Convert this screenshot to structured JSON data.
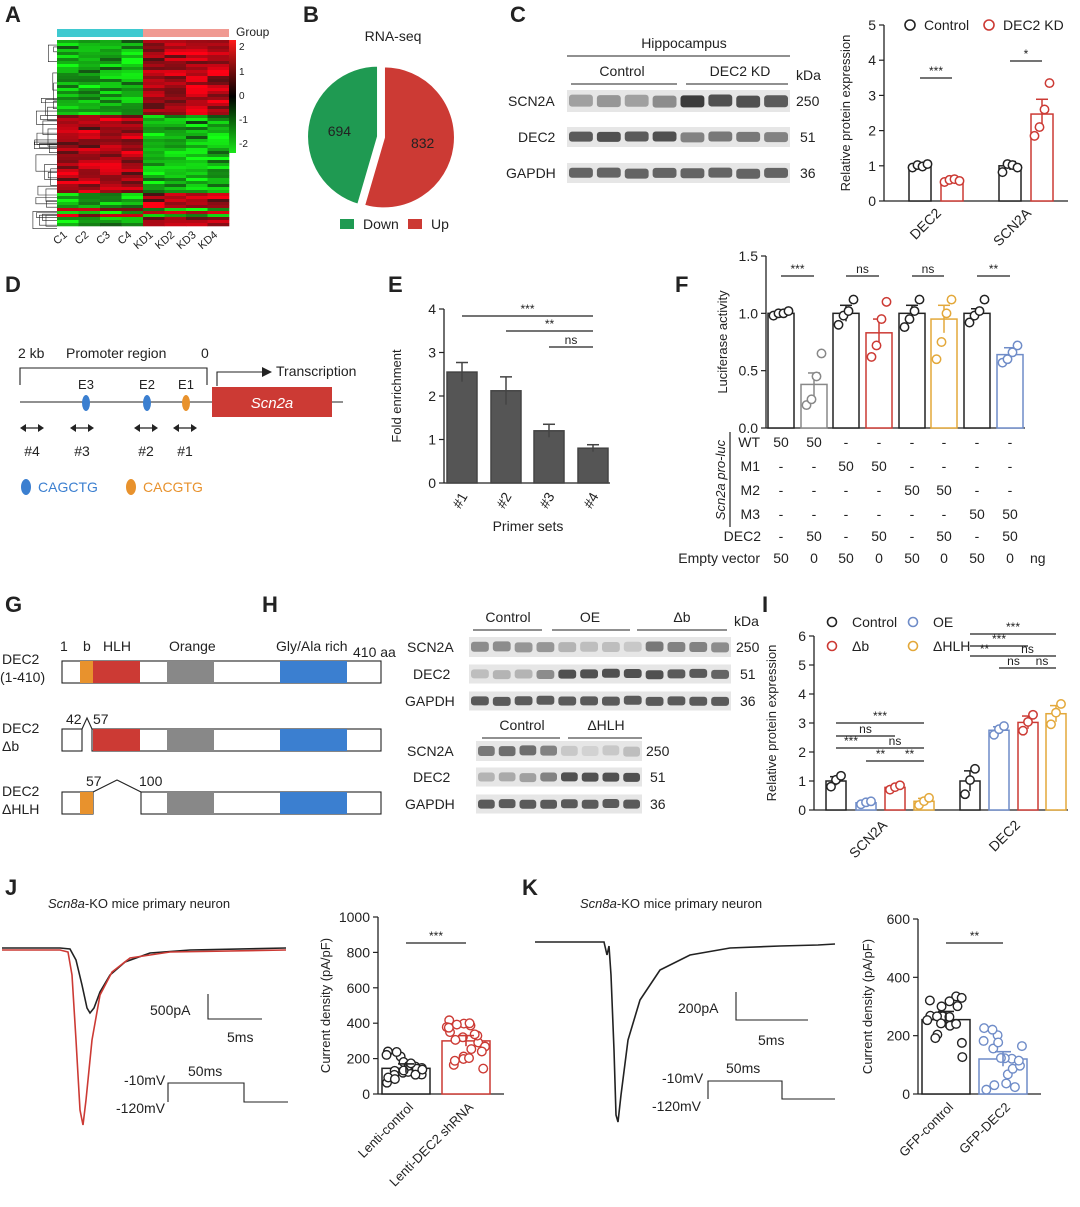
{
  "panel_letters": [
    "A",
    "B",
    "C",
    "D",
    "E",
    "F",
    "G",
    "H",
    "I",
    "J",
    "K"
  ],
  "heatmap": {
    "legend_title": "Group",
    "scale_labels": [
      "2",
      "1",
      "0",
      "-1",
      "-2"
    ],
    "columns": [
      "C1",
      "C2",
      "C3",
      "C4",
      "KD1",
      "KD2",
      "KD3",
      "KD4"
    ],
    "colors": {
      "control_bar": "#3fc9d0",
      "kd_bar": "#f09a92",
      "high": "#ff1a1a",
      "low": "#19e619",
      "mid": "#000000"
    }
  },
  "pie": {
    "title": "RNA-seq",
    "slices": [
      {
        "label": "Down",
        "value": 694,
        "color": "#1f9a52"
      },
      {
        "label": "Up",
        "value": 832,
        "color": "#cc3a34"
      }
    ]
  },
  "blotC": {
    "tissue": "Hippocampus",
    "groups": [
      "Control",
      "DEC2 KD"
    ],
    "kda_label": "kDa",
    "rows": [
      {
        "name": "SCN2A",
        "kda": "250"
      },
      {
        "name": "DEC2",
        "kda": "51"
      },
      {
        "name": "GAPDH",
        "kda": "36"
      }
    ]
  },
  "chart_data": [
    {
      "panel": "C",
      "type": "bar",
      "categories": [
        "DEC2",
        "SCN2A"
      ],
      "ylabel": "Relative protein expression",
      "ylim": [
        0,
        5
      ],
      "yticks": [
        "0",
        "1",
        "2",
        "3",
        "4",
        "5"
      ],
      "series": [
        {
          "name": "Control",
          "values": [
            1.0,
            1.0
          ],
          "sem": [
            0.05,
            0.12
          ],
          "points": [
            [
              0.95,
              1.02,
              0.98,
              1.05
            ],
            [
              0.82,
              1.05,
              1.02,
              0.95
            ]
          ],
          "color": "#222222"
        },
        {
          "name": "DEC2 KD",
          "values": [
            0.58,
            2.47
          ],
          "sem": [
            0.04,
            0.42
          ],
          "points": [
            [
              0.54,
              0.6,
              0.62,
              0.57
            ],
            [
              1.85,
              2.1,
              2.6,
              3.35
            ]
          ],
          "color": "#cc3a34"
        }
      ],
      "significance": [
        "***",
        "*"
      ]
    },
    {
      "panel": "E",
      "type": "bar",
      "categories": [
        "#1",
        "#2",
        "#3",
        "#4"
      ],
      "values": [
        2.55,
        2.12,
        1.2,
        0.8
      ],
      "sem": [
        0.22,
        0.32,
        0.15,
        0.08
      ],
      "xlabel": "Primer sets",
      "ylabel": "Fold enrichment",
      "ylim": [
        0,
        4
      ],
      "yticks": [
        "0",
        "1",
        "2",
        "3",
        "4"
      ],
      "comparisons": [
        {
          "from": "#1",
          "to": "#4",
          "label": "***"
        },
        {
          "from": "#2",
          "to": "#4",
          "label": "**"
        },
        {
          "from": "#3",
          "to": "#4",
          "label": "ns"
        }
      ]
    },
    {
      "panel": "F",
      "type": "bar",
      "ylabel": "Luciferase activity",
      "ylim": [
        0,
        1.5
      ],
      "yticks": [
        "0.0",
        "0.5",
        "1.0",
        "1.5"
      ],
      "values": [
        1.0,
        0.38,
        1.0,
        0.83,
        1.0,
        0.95,
        1.0,
        0.64
      ],
      "sem": [
        0.02,
        0.1,
        0.07,
        0.12,
        0.07,
        0.12,
        0.04,
        0.06
      ],
      "colors": [
        "#222222",
        "#888888",
        "#222222",
        "#cc3a34",
        "#222222",
        "#e3a83a",
        "#222222",
        "#6f8cc8"
      ],
      "points": [
        [
          0.98,
          1.0,
          1.0,
          1.02
        ],
        [
          0.2,
          0.25,
          0.45,
          0.65
        ],
        [
          0.9,
          0.98,
          1.02,
          1.12
        ],
        [
          0.62,
          0.72,
          0.95,
          1.1
        ],
        [
          0.88,
          0.95,
          1.02,
          1.12
        ],
        [
          0.6,
          0.75,
          1.0,
          1.12
        ],
        [
          0.92,
          0.98,
          1.02,
          1.12
        ],
        [
          0.57,
          0.6,
          0.66,
          0.72
        ]
      ],
      "significance": [
        "***",
        "ns",
        "ns",
        "**"
      ],
      "condition_group_label": "Scn2a pro-luc",
      "condition_rows": [
        {
          "label": "WT",
          "cells": [
            "50",
            "50",
            "-",
            "-",
            "-",
            "-",
            "-",
            "-"
          ]
        },
        {
          "label": "M1",
          "cells": [
            "-",
            "-",
            "50",
            "50",
            "-",
            "-",
            "-",
            "-"
          ]
        },
        {
          "label": "M2",
          "cells": [
            "-",
            "-",
            "-",
            "-",
            "50",
            "50",
            "-",
            "-"
          ]
        },
        {
          "label": "M3",
          "cells": [
            "-",
            "-",
            "-",
            "-",
            "-",
            "-",
            "50",
            "50"
          ]
        },
        {
          "label": "DEC2",
          "cells": [
            "-",
            "50",
            "-",
            "50",
            "-",
            "50",
            "-",
            "50"
          ]
        },
        {
          "label": "Empty vector",
          "cells": [
            "50",
            "0",
            "50",
            "0",
            "50",
            "0",
            "50",
            "0"
          ],
          "unit": "ng"
        }
      ]
    },
    {
      "panel": "I",
      "type": "bar",
      "categories": [
        "SCN2A",
        "DEC2"
      ],
      "ylabel": "Relative protein expression",
      "ylim": [
        0,
        6
      ],
      "yticks": [
        "0",
        "1",
        "2",
        "3",
        "4",
        "5",
        "6"
      ],
      "series": [
        {
          "name": "Control",
          "values": [
            1.0,
            1.0
          ],
          "sem": [
            0.15,
            0.35
          ],
          "color": "#222222"
        },
        {
          "name": "OE",
          "values": [
            0.25,
            2.75
          ],
          "sem": [
            0.04,
            0.12
          ],
          "color": "#6f8cc8"
        },
        {
          "name": "Δb",
          "values": [
            0.78,
            3.02
          ],
          "sem": [
            0.06,
            0.22
          ],
          "color": "#cc3a34"
        },
        {
          "name": "ΔHLH",
          "values": [
            0.3,
            3.32
          ],
          "sem": [
            0.1,
            0.28
          ],
          "color": "#e3a83a"
        }
      ],
      "significance": [
        "***",
        "ns",
        "***",
        "**",
        "ns",
        "**",
        "***",
        "***",
        "**",
        "ns",
        "ns",
        "ns"
      ]
    },
    {
      "panel": "J",
      "type": "bar",
      "categories": [
        "Lenti-control",
        "Lenti-DEC2 shRNA"
      ],
      "values": [
        145,
        300
      ],
      "sem": [
        25,
        30
      ],
      "colors": [
        "#222222",
        "#cc3a34"
      ],
      "ylabel": "Current density (pA/pF)",
      "ylim": [
        0,
        1000
      ],
      "yticks": [
        "0",
        "200",
        "400",
        "600",
        "800",
        "1000"
      ],
      "significance": "***"
    },
    {
      "panel": "K",
      "type": "bar",
      "categories": [
        "GFP-control",
        "GFP-DEC2"
      ],
      "values": [
        255,
        120
      ],
      "sem": [
        28,
        25
      ],
      "colors": [
        "#222222",
        "#6f8cc8"
      ],
      "ylabel": "Current density (pA/pF)",
      "ylim": [
        0,
        600
      ],
      "yticks": [
        "0",
        "200",
        "400",
        "600"
      ],
      "significance": "**"
    }
  ],
  "panelD": {
    "dist_start": "2 kb",
    "region": "Promoter region",
    "dist_end": "0",
    "transcription": "Transcription",
    "gene": "Scn2a",
    "boxes": [
      "E3",
      "E2",
      "E1"
    ],
    "primers": [
      "#4",
      "#3",
      "#2",
      "#1"
    ],
    "motifs": [
      {
        "text": "CAGCTG",
        "color": "#3b7fd0"
      },
      {
        "text": "CACGTG",
        "color": "#e8922d"
      }
    ]
  },
  "panelG": {
    "domains": [
      "b",
      "HLH",
      "Orange",
      "Gly/Ala rich"
    ],
    "start": "1",
    "length": "410 aa",
    "constructs": [
      {
        "name": "DEC2",
        "sub": "(1-410)"
      },
      {
        "name": "DEC2",
        "sub": "Δb",
        "marks": [
          "42",
          "57"
        ]
      },
      {
        "name": "DEC2",
        "sub": "ΔHLH",
        "marks": [
          "57",
          "100"
        ]
      }
    ]
  },
  "blotH": {
    "top_groups": [
      "Control",
      "OE",
      "Δb"
    ],
    "bottom_groups": [
      "Control",
      "ΔHLH"
    ],
    "kda_label": "kDa",
    "top_rows": [
      {
        "name": "SCN2A",
        "kda": "250"
      },
      {
        "name": "DEC2",
        "kda": "51"
      },
      {
        "name": "GAPDH",
        "kda": "36"
      }
    ],
    "bottom_rows": [
      {
        "name": "SCN2A",
        "kda": "250"
      },
      {
        "name": "DEC2",
        "kda": "51"
      },
      {
        "name": "GAPDH",
        "kda": "36"
      }
    ]
  },
  "traceJ": {
    "title_italic": "Scn8a",
    "title_rest": "-KO mice primary neuron",
    "scale_y": "500pA",
    "scale_x": "5ms",
    "v_hold": "-120mV",
    "v_step": "-10mV",
    "step_dur": "50ms"
  },
  "traceK": {
    "title_italic": "Scn8a",
    "title_rest": "-KO mice primary neuron",
    "scale_y": "200pA",
    "scale_x": "5ms",
    "v_hold": "-120mV",
    "v_step": "-10mV",
    "step_dur": "50ms"
  }
}
